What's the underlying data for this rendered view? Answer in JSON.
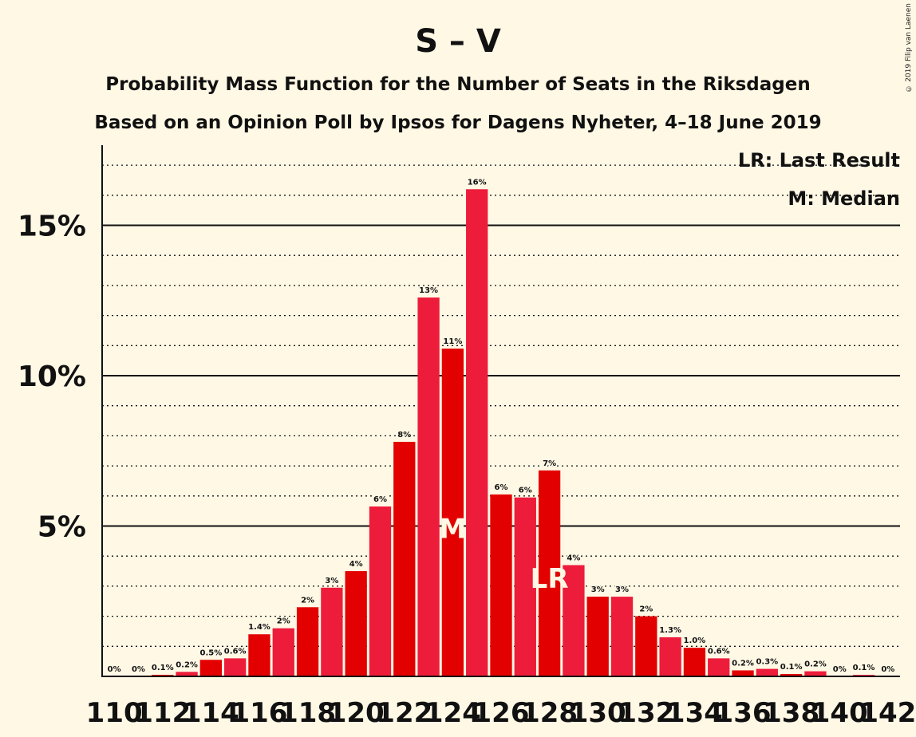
{
  "copyright": "© 2019 Filip van Laenen",
  "chart_data": {
    "type": "bar",
    "title": "S – V",
    "subtitle1": "Probability Mass Function for the Number of Seats in the Riksdagen",
    "subtitle2": "Based on an Opinion Poll by Ipsos for Dagens Nyheter, 4–18 June 2019",
    "legend": [
      "LR: Last Result",
      "M: Median"
    ],
    "legend_position": "top-right",
    "ylim": [
      0,
      17.5
    ],
    "yticks": [
      {
        "value": 5,
        "label": "5%"
      },
      {
        "value": 10,
        "label": "10%"
      },
      {
        "value": 15,
        "label": "15%"
      }
    ],
    "x": [
      110,
      111,
      112,
      113,
      114,
      115,
      116,
      117,
      118,
      119,
      120,
      121,
      122,
      123,
      124,
      125,
      126,
      127,
      128,
      129,
      130,
      131,
      132,
      133,
      134,
      135,
      136,
      137,
      138,
      139,
      140,
      141,
      142
    ],
    "xtick_labels": [
      "110",
      "112",
      "114",
      "116",
      "118",
      "120",
      "122",
      "124",
      "126",
      "128",
      "130",
      "132",
      "134",
      "136",
      "138",
      "140",
      "142"
    ],
    "values": [
      0,
      0,
      0.05,
      0.15,
      0.55,
      0.6,
      1.4,
      1.6,
      2.3,
      2.95,
      3.5,
      5.65,
      7.8,
      12.6,
      10.9,
      16.2,
      6.05,
      5.95,
      6.85,
      3.7,
      2.65,
      2.65,
      2.0,
      1.3,
      0.95,
      0.6,
      0.2,
      0.25,
      0.08,
      0.17,
      0,
      0.05,
      0
    ],
    "labels": [
      "0%",
      "0%",
      "0.1%",
      "0.2%",
      "0.5%",
      "0.6%",
      "1.4%",
      "2%",
      "2%",
      "3%",
      "4%",
      "6%",
      "8%",
      "13%",
      "11%",
      "16%",
      "6%",
      "6%",
      "7%",
      "4%",
      "3%",
      "3%",
      "2%",
      "1.3%",
      "1.0%",
      "0.6%",
      "0.2%",
      "0.3%",
      "0.1%",
      "0.2%",
      "0%",
      "0.1%",
      "0%"
    ],
    "median_seat": 124,
    "last_result_seat": 128,
    "median_marker": "M",
    "last_result_marker": "LR",
    "colors": {
      "bar_dark": "#e30000",
      "bar_light": "#ed1c3a",
      "background": "#fff8e5",
      "marker_text": "#fff8e5"
    },
    "grid": true
  }
}
